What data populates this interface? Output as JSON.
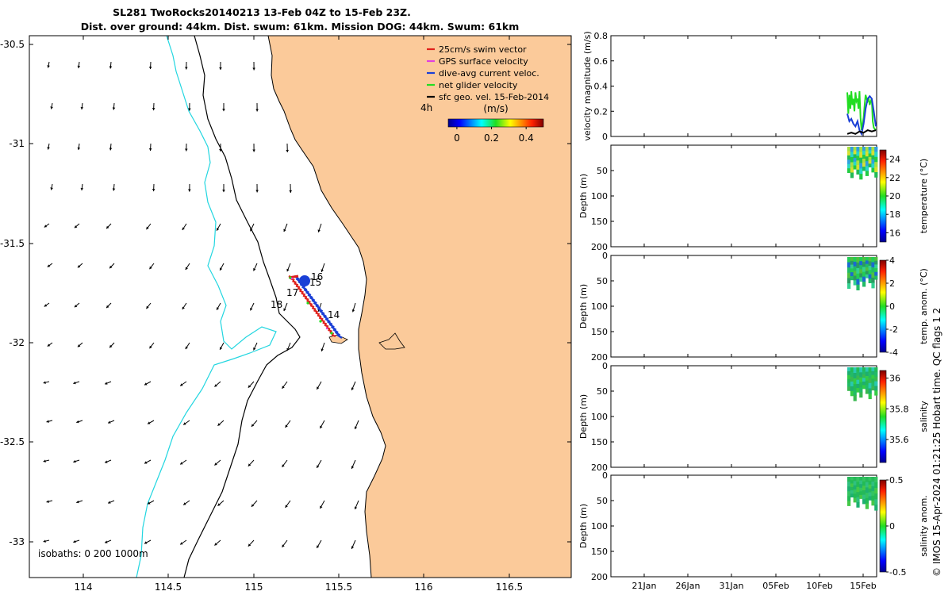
{
  "title": {
    "line1": "SL281 TwoRocks20140213 13-Feb 04Z to 15-Feb 23Z.",
    "line2": "Dist. over ground: 44km. Dist. swum: 61km. Mission DOG: 44km. Swum: 61km"
  },
  "colors": {
    "land": "#fbca9a",
    "isobath_200": "#000000",
    "isobath_1000": "#22d6e0",
    "swim_vector": "#e0201b",
    "gps_velocity": "#e040e0",
    "dive_avg_velocity": "#1a3fd6",
    "net_glider_velocity": "#22dd22",
    "sfc_geo_velocity": "#000000"
  },
  "map": {
    "lon_ticks": [
      "114",
      "114.5",
      "115",
      "115.5",
      "116",
      "116.5"
    ],
    "lat_ticks": [
      "-30.5",
      "-31",
      "-31.5",
      "-32",
      "-32.5",
      "-33"
    ],
    "day_labels": [
      "14",
      "15",
      "16",
      "17",
      "18"
    ],
    "isobaths_label": "isobaths: 0   200  1000m",
    "hours_label": "4h",
    "legend": [
      {
        "label": "25cm/s swim vector",
        "color": "#e0201b"
      },
      {
        "label": "GPS surface velocity",
        "color": "#e040e0"
      },
      {
        "label": "dive-avg current veloc.",
        "color": "#1a3fd6"
      },
      {
        "label": "net glider velocity",
        "color": "#22dd22"
      },
      {
        "label": "sfc geo. vel. 15-Feb-2014",
        "color": "#000000"
      }
    ],
    "colorbar": {
      "label": "(m/s)",
      "ticks": [
        "0",
        "0.2",
        "0.4"
      ],
      "range": [
        -0.05,
        0.5
      ]
    }
  },
  "chart_data": [
    {
      "type": "line",
      "ylabel": "velocity magnitude (m/s)",
      "ylim": [
        0,
        0.8
      ],
      "y_ticks": [
        "0",
        "0.2",
        "0.4",
        "0.6",
        "0.8"
      ],
      "x_ticks": [
        "21Jan",
        "26Jan",
        "31Jan",
        "05Feb",
        "10Feb",
        "15Feb"
      ],
      "series": [
        {
          "color": "#22dd22",
          "x": [
            0,
            0.1,
            0.2,
            0.3,
            0.4,
            0.5,
            0.6,
            0.7,
            0.8,
            0.9,
            1.0,
            1.1,
            1.2,
            1.3,
            1.4,
            1.5,
            1.6,
            1.7,
            1.8,
            1.9,
            2.0,
            2.1,
            2.2,
            2.3,
            2.4,
            2.5,
            2.6,
            2.7,
            2.8
          ],
          "y": [
            0.35,
            0.18,
            0.33,
            0.22,
            0.36,
            0.25,
            0.3,
            0.2,
            0.35,
            0.28,
            0.3,
            0.22,
            0.36,
            0.15,
            0.05,
            0.1,
            0.15,
            0.25,
            0.33,
            0.3,
            0.28,
            0.3,
            0.25,
            0.28,
            0.3,
            0.12,
            0.07,
            0.06,
            0.05
          ]
        },
        {
          "color": "#1a3fd6",
          "x": [
            0,
            0.2,
            0.4,
            0.6,
            0.8,
            1.0,
            1.2,
            1.4,
            1.6,
            1.8,
            2.0,
            2.2,
            2.4,
            2.6,
            2.8
          ],
          "y": [
            0.18,
            0.12,
            0.14,
            0.1,
            0.08,
            0.12,
            0.05,
            0.02,
            0.1,
            0.22,
            0.3,
            0.32,
            0.3,
            0.2,
            0.08
          ]
        },
        {
          "color": "#000000",
          "x": [
            0,
            0.4,
            0.8,
            1.2,
            1.6,
            2.0,
            2.4,
            2.8
          ],
          "y": [
            0.02,
            0.03,
            0.02,
            0.04,
            0.03,
            0.05,
            0.04,
            0.05
          ]
        }
      ]
    },
    {
      "type": "heatmap",
      "ylabel": "Depth (m)",
      "ylim": [
        200,
        0
      ],
      "y_ticks": [
        "50",
        "100",
        "150",
        "200"
      ],
      "colorbar": {
        "label": "temperature (°C)",
        "ticks": [
          "24",
          "22",
          "20",
          "18",
          "16"
        ],
        "range": [
          15,
          25
        ]
      }
    },
    {
      "type": "heatmap",
      "ylabel": "Depth (m)",
      "ylim": [
        200,
        0
      ],
      "y_ticks": [
        "0",
        "50",
        "100",
        "150",
        "200"
      ],
      "colorbar": {
        "label": "temp. anom. (°C)",
        "ticks": [
          "4",
          "2",
          "0",
          "-2",
          "-4"
        ],
        "range": [
          -4,
          4
        ]
      }
    },
    {
      "type": "heatmap",
      "ylabel": "Depth (m)",
      "ylim": [
        200,
        0
      ],
      "y_ticks": [
        "0",
        "50",
        "100",
        "150",
        "200"
      ],
      "colorbar": {
        "label": "salinity",
        "ticks": [
          "36",
          "35.8",
          "35.6"
        ],
        "range": [
          35.45,
          36.05
        ]
      }
    },
    {
      "type": "heatmap",
      "ylabel": "Depth (m)",
      "ylim": [
        200,
        0
      ],
      "y_ticks": [
        "0",
        "50",
        "100",
        "150",
        "200"
      ],
      "colorbar": {
        "label": "salinity anom.",
        "ticks": [
          "0.5",
          "0",
          "-0.5"
        ],
        "range": [
          -0.5,
          0.5
        ]
      }
    }
  ],
  "footer": "© IMOS 15-Apr-2024 01:21:25 Hobart time. QC flags 1  2"
}
